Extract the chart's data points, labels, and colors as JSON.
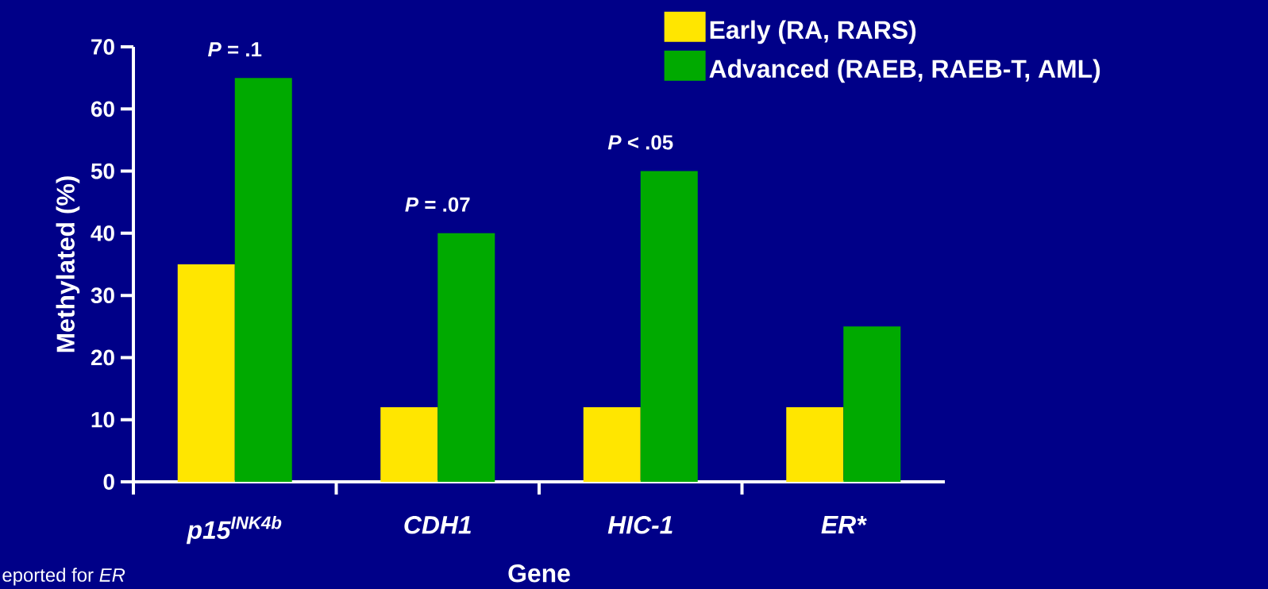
{
  "chart_data": {
    "type": "bar",
    "xlabel": "Gene",
    "ylabel": "Methylated (%)",
    "categories": [
      "p15$^{INK4b}$",
      "CDH1",
      "HIC-1",
      "ER*"
    ],
    "series": [
      {
        "name": "Early (RA, RARS)",
        "color": "#ffe600",
        "values": [
          35,
          12,
          12,
          12
        ]
      },
      {
        "name": "Advanced (RAEB, RAEB-T, AML)",
        "color": "#00aa00",
        "values": [
          65,
          40,
          50,
          25
        ]
      }
    ],
    "ylim": [
      0,
      70
    ],
    "yticks": [
      0,
      10,
      20,
      30,
      40,
      50,
      60,
      70
    ],
    "legend": "top right",
    "annotations": [
      {
        "text": "*P* = .1",
        "x": "p15$^{INK4b}$",
        "y": 65
      },
      {
        "text": "*P* = .07",
        "x": "CDH1",
        "y": 40
      },
      {
        "text": "*P* < .05",
        "x": "HIC-1",
        "y": 50
      },
      "eported for *ER*"
    ]
  }
}
